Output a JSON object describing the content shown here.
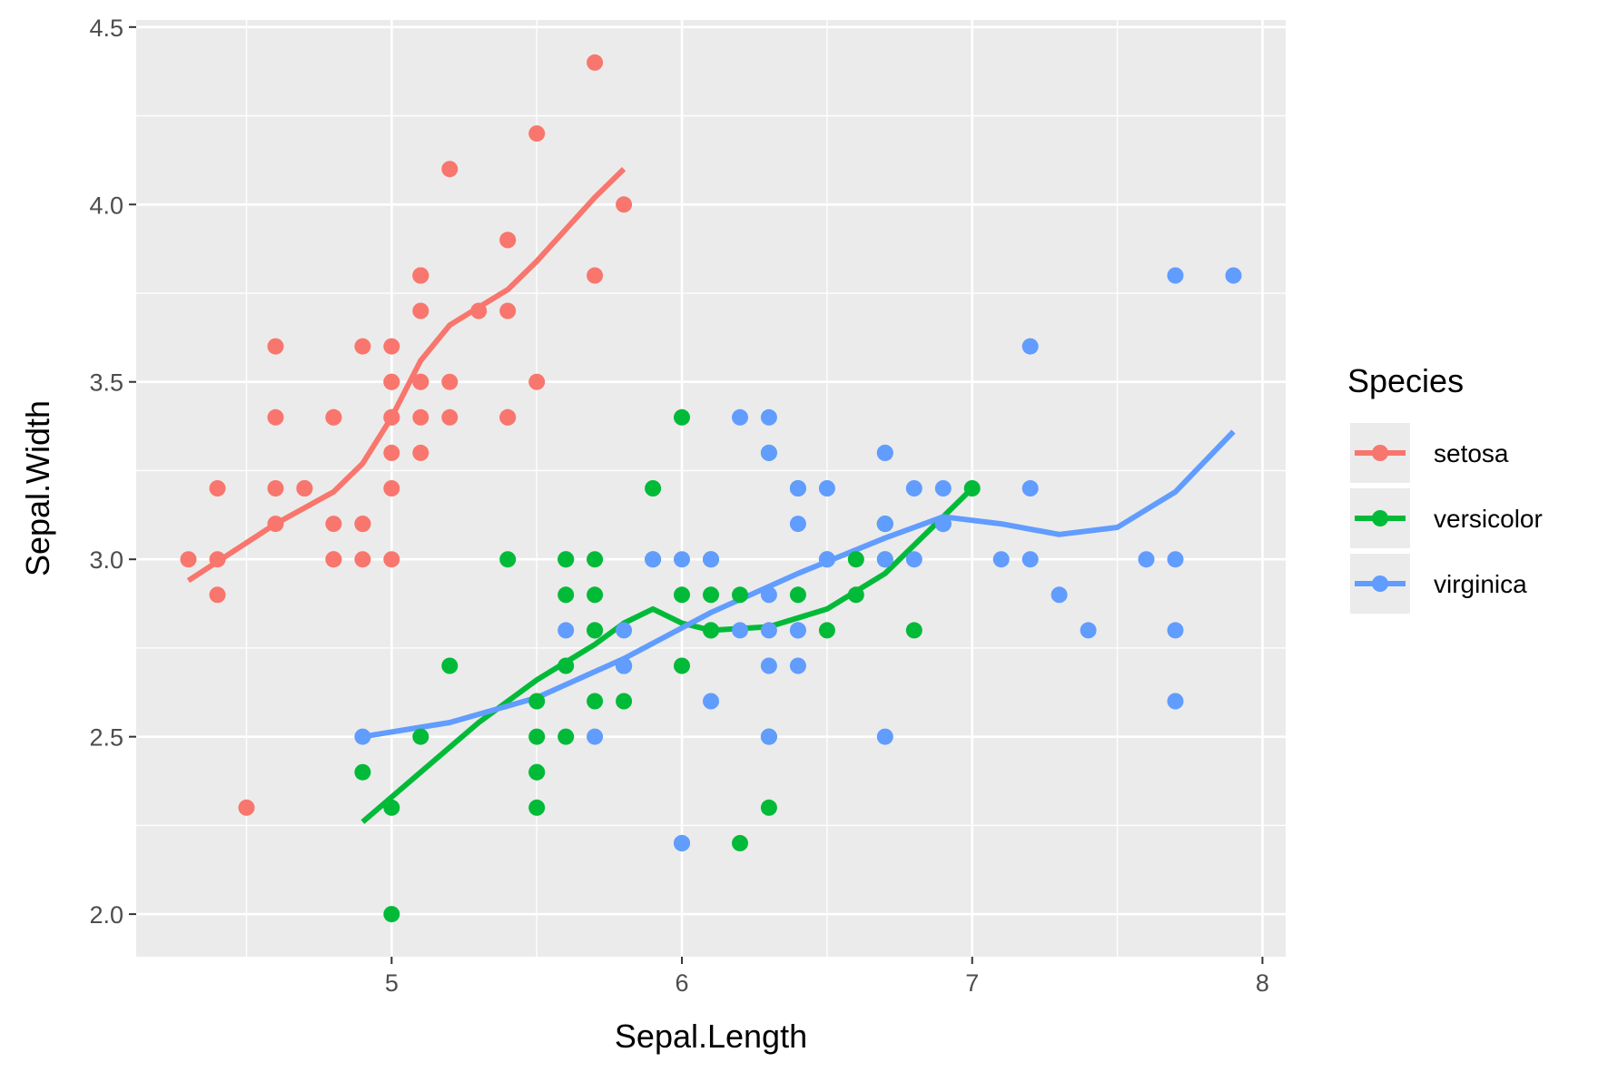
{
  "chart_data": {
    "type": "scatter",
    "title": "",
    "xlabel": "Sepal.Length",
    "ylabel": "Sepal.Width",
    "xlim": [
      4.12,
      8.08
    ],
    "ylim": [
      1.88,
      4.52
    ],
    "x_ticks": [
      5,
      6,
      7,
      8
    ],
    "y_ticks": [
      2.0,
      2.5,
      3.0,
      3.5,
      4.0,
      4.5
    ],
    "x_tick_labels": [
      "5",
      "6",
      "7",
      "8"
    ],
    "y_tick_labels": [
      "2.0",
      "2.5",
      "3.0",
      "3.5",
      "4.0",
      "4.5"
    ],
    "grid": true,
    "smooth": "loess",
    "legend": {
      "title": "Species",
      "position": "right"
    },
    "series": [
      {
        "name": "setosa",
        "color": "#F8766D",
        "points": [
          [
            5.1,
            3.5
          ],
          [
            4.9,
            3.0
          ],
          [
            4.7,
            3.2
          ],
          [
            4.6,
            3.1
          ],
          [
            5.0,
            3.6
          ],
          [
            5.4,
            3.9
          ],
          [
            4.6,
            3.4
          ],
          [
            5.0,
            3.4
          ],
          [
            4.4,
            2.9
          ],
          [
            4.9,
            3.1
          ],
          [
            5.4,
            3.7
          ],
          [
            4.8,
            3.4
          ],
          [
            4.8,
            3.0
          ],
          [
            4.3,
            3.0
          ],
          [
            5.8,
            4.0
          ],
          [
            5.7,
            4.4
          ],
          [
            5.4,
            3.9
          ],
          [
            5.1,
            3.5
          ],
          [
            5.7,
            3.8
          ],
          [
            5.1,
            3.8
          ],
          [
            5.4,
            3.4
          ],
          [
            5.1,
            3.7
          ],
          [
            4.6,
            3.6
          ],
          [
            5.1,
            3.3
          ],
          [
            4.8,
            3.4
          ],
          [
            5.0,
            3.0
          ],
          [
            5.0,
            3.4
          ],
          [
            5.2,
            3.5
          ],
          [
            5.2,
            3.4
          ],
          [
            4.7,
            3.2
          ],
          [
            4.8,
            3.1
          ],
          [
            5.4,
            3.4
          ],
          [
            5.2,
            4.1
          ],
          [
            5.5,
            4.2
          ],
          [
            4.9,
            3.1
          ],
          [
            5.0,
            3.2
          ],
          [
            5.5,
            3.5
          ],
          [
            4.9,
            3.6
          ],
          [
            4.4,
            3.0
          ],
          [
            5.1,
            3.4
          ],
          [
            5.0,
            3.5
          ],
          [
            4.5,
            2.3
          ],
          [
            4.4,
            3.2
          ],
          [
            5.0,
            3.5
          ],
          [
            5.1,
            3.8
          ],
          [
            4.8,
            3.0
          ],
          [
            5.1,
            3.8
          ],
          [
            4.6,
            3.2
          ],
          [
            5.3,
            3.7
          ],
          [
            5.0,
            3.3
          ]
        ],
        "smooth": [
          [
            4.3,
            2.94
          ],
          [
            4.45,
            3.02
          ],
          [
            4.6,
            3.1
          ],
          [
            4.8,
            3.19
          ],
          [
            4.9,
            3.27
          ],
          [
            5.0,
            3.4
          ],
          [
            5.1,
            3.56
          ],
          [
            5.2,
            3.66
          ],
          [
            5.3,
            3.71
          ],
          [
            5.4,
            3.76
          ],
          [
            5.5,
            3.84
          ],
          [
            5.6,
            3.93
          ],
          [
            5.7,
            4.02
          ],
          [
            5.8,
            4.1
          ]
        ]
      },
      {
        "name": "versicolor",
        "color": "#00BA38",
        "points": [
          [
            7.0,
            3.2
          ],
          [
            6.4,
            3.2
          ],
          [
            6.9,
            3.1
          ],
          [
            5.5,
            2.3
          ],
          [
            6.5,
            2.8
          ],
          [
            5.7,
            2.8
          ],
          [
            6.3,
            3.3
          ],
          [
            4.9,
            2.4
          ],
          [
            6.6,
            2.9
          ],
          [
            5.2,
            2.7
          ],
          [
            5.0,
            2.0
          ],
          [
            5.9,
            3.0
          ],
          [
            6.0,
            2.2
          ],
          [
            6.1,
            2.9
          ],
          [
            5.6,
            2.9
          ],
          [
            6.7,
            3.1
          ],
          [
            5.6,
            3.0
          ],
          [
            5.8,
            2.7
          ],
          [
            6.2,
            2.2
          ],
          [
            5.6,
            2.5
          ],
          [
            5.9,
            3.2
          ],
          [
            6.1,
            2.8
          ],
          [
            6.3,
            2.5
          ],
          [
            6.1,
            2.8
          ],
          [
            6.4,
            2.9
          ],
          [
            6.6,
            3.0
          ],
          [
            6.8,
            2.8
          ],
          [
            6.7,
            3.0
          ],
          [
            6.0,
            2.9
          ],
          [
            5.7,
            2.6
          ],
          [
            5.5,
            2.4
          ],
          [
            5.5,
            2.4
          ],
          [
            5.8,
            2.7
          ],
          [
            6.0,
            2.7
          ],
          [
            5.4,
            3.0
          ],
          [
            6.0,
            3.4
          ],
          [
            6.7,
            3.1
          ],
          [
            6.3,
            2.3
          ],
          [
            5.6,
            3.0
          ],
          [
            5.5,
            2.5
          ],
          [
            5.5,
            2.6
          ],
          [
            6.1,
            3.0
          ],
          [
            5.8,
            2.6
          ],
          [
            5.0,
            2.3
          ],
          [
            5.6,
            2.7
          ],
          [
            5.7,
            3.0
          ],
          [
            5.7,
            2.9
          ],
          [
            6.2,
            2.9
          ],
          [
            5.1,
            2.5
          ],
          [
            5.7,
            2.8
          ]
        ],
        "smooth": [
          [
            4.9,
            2.26
          ],
          [
            5.1,
            2.4
          ],
          [
            5.3,
            2.54
          ],
          [
            5.5,
            2.66
          ],
          [
            5.7,
            2.76
          ],
          [
            5.8,
            2.82
          ],
          [
            5.9,
            2.86
          ],
          [
            6.0,
            2.82
          ],
          [
            6.1,
            2.8
          ],
          [
            6.3,
            2.81
          ],
          [
            6.5,
            2.86
          ],
          [
            6.7,
            2.96
          ],
          [
            6.9,
            3.12
          ],
          [
            7.0,
            3.2
          ]
        ]
      },
      {
        "name": "virginica",
        "color": "#619CFF",
        "points": [
          [
            6.3,
            3.3
          ],
          [
            5.8,
            2.7
          ],
          [
            7.1,
            3.0
          ],
          [
            6.3,
            2.9
          ],
          [
            6.5,
            3.0
          ],
          [
            7.6,
            3.0
          ],
          [
            4.9,
            2.5
          ],
          [
            7.3,
            2.9
          ],
          [
            6.7,
            2.5
          ],
          [
            7.2,
            3.6
          ],
          [
            6.5,
            3.2
          ],
          [
            6.4,
            2.7
          ],
          [
            6.8,
            3.0
          ],
          [
            5.7,
            2.5
          ],
          [
            5.8,
            2.8
          ],
          [
            6.4,
            3.2
          ],
          [
            6.5,
            3.0
          ],
          [
            7.7,
            3.8
          ],
          [
            7.7,
            2.6
          ],
          [
            6.0,
            2.2
          ],
          [
            6.9,
            3.2
          ],
          [
            5.6,
            2.8
          ],
          [
            7.7,
            2.8
          ],
          [
            6.3,
            2.7
          ],
          [
            6.7,
            3.3
          ],
          [
            7.2,
            3.2
          ],
          [
            6.2,
            2.8
          ],
          [
            6.1,
            3.0
          ],
          [
            6.4,
            2.8
          ],
          [
            7.2,
            3.0
          ],
          [
            7.4,
            2.8
          ],
          [
            7.9,
            3.8
          ],
          [
            6.4,
            2.8
          ],
          [
            6.3,
            2.8
          ],
          [
            6.1,
            2.6
          ],
          [
            7.7,
            3.0
          ],
          [
            6.3,
            3.4
          ],
          [
            6.4,
            3.1
          ],
          [
            6.0,
            3.0
          ],
          [
            6.9,
            3.1
          ],
          [
            6.7,
            3.1
          ],
          [
            6.9,
            3.1
          ],
          [
            5.8,
            2.7
          ],
          [
            6.8,
            3.2
          ],
          [
            6.7,
            3.3
          ],
          [
            6.7,
            3.0
          ],
          [
            6.3,
            2.5
          ],
          [
            6.5,
            3.0
          ],
          [
            6.2,
            3.4
          ],
          [
            5.9,
            3.0
          ]
        ],
        "smooth": [
          [
            4.9,
            2.5
          ],
          [
            5.2,
            2.54
          ],
          [
            5.5,
            2.61
          ],
          [
            5.8,
            2.72
          ],
          [
            6.1,
            2.85
          ],
          [
            6.4,
            2.96
          ],
          [
            6.7,
            3.06
          ],
          [
            6.9,
            3.12
          ],
          [
            7.1,
            3.1
          ],
          [
            7.3,
            3.07
          ],
          [
            7.5,
            3.09
          ],
          [
            7.7,
            3.19
          ],
          [
            7.9,
            3.36
          ]
        ]
      }
    ]
  }
}
